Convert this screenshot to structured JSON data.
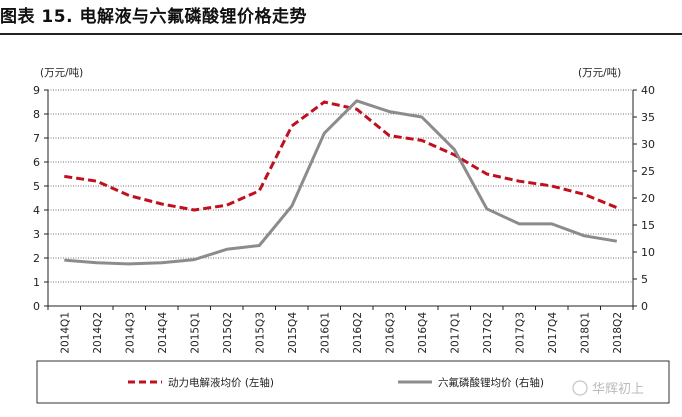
{
  "header": {
    "title": "图表 15. 电解液与六氟磷酸锂价格走势"
  },
  "watermark": {
    "text": "华辉初上"
  },
  "chart_data": {
    "type": "line",
    "categories": [
      "2014Q1",
      "2014Q2",
      "2014Q3",
      "2014Q4",
      "2015Q1",
      "2015Q2",
      "2015Q3",
      "2015Q4",
      "2016Q1",
      "2016Q2",
      "2016Q3",
      "2016Q4",
      "2017Q1",
      "2017Q2",
      "2017Q3",
      "2017Q4",
      "2018Q1",
      "2018Q2"
    ],
    "left_axis": {
      "unit_label": "(万元/吨)",
      "ylim": [
        0,
        9
      ],
      "ticks": [
        0,
        1,
        2,
        3,
        4,
        5,
        6,
        7,
        8,
        9
      ]
    },
    "right_axis": {
      "unit_label": "(万元/吨)",
      "ylim": [
        0,
        40
      ],
      "ticks": [
        0,
        5,
        10,
        15,
        20,
        25,
        30,
        35,
        40
      ]
    },
    "grid": "horizontal",
    "legend_position": "bottom",
    "series": [
      {
        "name": "动力电解液均价 (左轴)",
        "axis": "left",
        "style": "dashed",
        "color": "#c0101e",
        "values": [
          5.4,
          5.2,
          4.6,
          4.25,
          4.0,
          4.2,
          4.8,
          7.5,
          8.5,
          8.2,
          7.1,
          6.9,
          6.3,
          5.5,
          5.2,
          5.0,
          4.65,
          4.1
        ]
      },
      {
        "name": "六氟磷酸锂均价 (右轴)",
        "axis": "right",
        "style": "solid",
        "color": "#8c8c8c",
        "values": [
          8.5,
          8.0,
          7.8,
          8.0,
          8.6,
          10.5,
          11.2,
          18.5,
          32.0,
          38.0,
          36.0,
          35.0,
          29.0,
          18.0,
          15.2,
          15.2,
          13.0,
          12.0
        ]
      }
    ]
  }
}
